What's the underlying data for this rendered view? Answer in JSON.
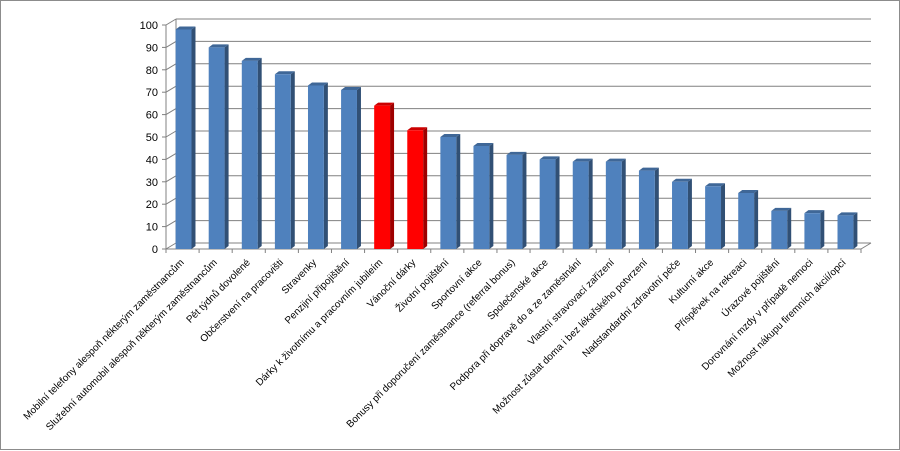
{
  "chart_data": {
    "type": "bar",
    "title": "",
    "xlabel": "",
    "ylabel": "",
    "ylim": [
      0,
      100
    ],
    "yticks": [
      0,
      10,
      20,
      30,
      40,
      50,
      60,
      70,
      80,
      90,
      100
    ],
    "grid": true,
    "legend": "none",
    "three_d": true,
    "categories": [
      "Mobilní telefony alespoň některým zaměstnancům",
      "Služební automobil alespoň některým zaměstnancům",
      "Pět týdnů dovolené",
      "Občerstvení na pracovišti",
      "Stravenky",
      "Penzijní připojištění",
      "Dárky k životnímu a pracovním jubileím",
      "Vánoční dárky",
      "Životní pojištění",
      "Sportovní akce",
      "Bonusy při doporučení zaměstnance (referral bonus)",
      "Společenské akce",
      "Podpora při dopravě do a ze zaměstnání",
      "Vlastní stravovací zařízení",
      "Možnost zůstat doma i bez lékařského potvrzení",
      "Nadstandardní zdravotní péče",
      "Kulturní akce",
      "Příspěvek na rekreaci",
      "Úrazové pojištění",
      "Dorovnání mzdy v případě nemoci",
      "Možnost nákupu firemních akcií/opcí"
    ],
    "values": [
      98,
      90,
      84,
      78,
      73,
      71,
      64,
      53,
      50,
      46,
      42,
      40,
      39,
      39,
      35,
      30,
      28,
      25,
      17,
      16,
      15
    ],
    "highlight": [
      6,
      7
    ],
    "colors": {
      "bar": "#4f81bd",
      "highlight": "#ff0000",
      "grid": "#808080",
      "axis": "#808080"
    }
  }
}
